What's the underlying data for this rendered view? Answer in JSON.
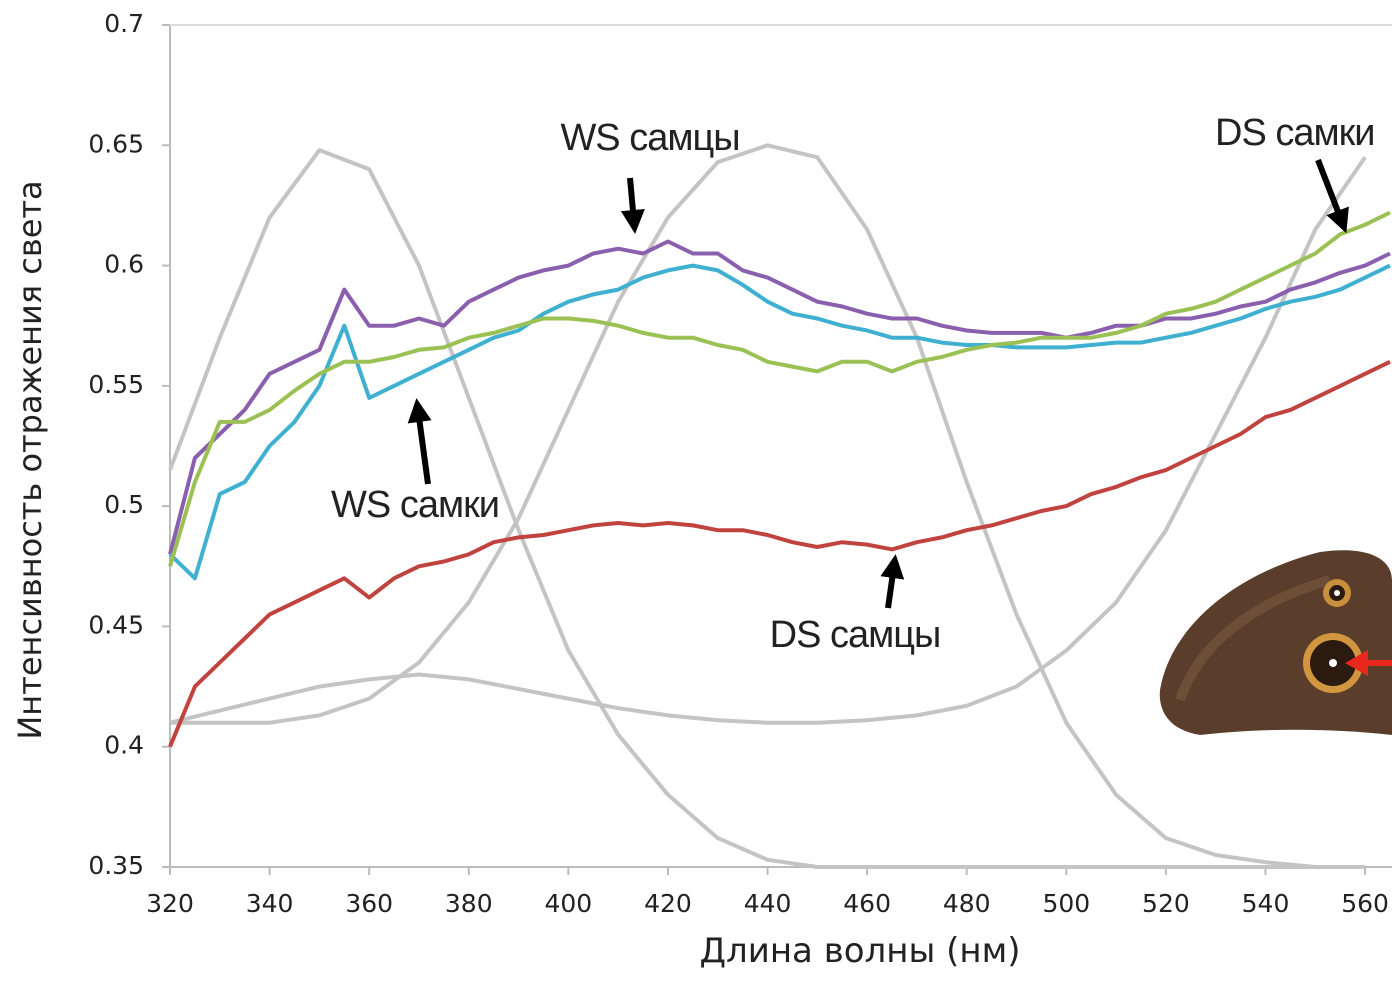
{
  "chart_data": {
    "type": "line",
    "x_label": "Длина волны (нм)",
    "y_label": "Интенсивность отражения света",
    "xlim": [
      320,
      565
    ],
    "ylim": [
      0.35,
      0.7
    ],
    "xticks": [
      320,
      340,
      360,
      380,
      400,
      420,
      440,
      460,
      480,
      500,
      520,
      540,
      560
    ],
    "yticks": [
      0.35,
      0.4,
      0.45,
      0.5,
      0.55,
      0.6,
      0.65,
      0.7
    ],
    "x": [
      320,
      325,
      330,
      335,
      340,
      345,
      350,
      355,
      360,
      365,
      370,
      375,
      380,
      385,
      390,
      395,
      400,
      405,
      410,
      415,
      420,
      425,
      430,
      435,
      440,
      445,
      450,
      455,
      460,
      465,
      470,
      475,
      480,
      485,
      490,
      495,
      500,
      505,
      510,
      515,
      520,
      525,
      530,
      535,
      540,
      545,
      550,
      555,
      560,
      565
    ],
    "series": [
      {
        "name": "WS самцы",
        "color": "#8a5fae",
        "values": [
          0.48,
          0.52,
          0.53,
          0.54,
          0.555,
          0.56,
          0.565,
          0.59,
          0.575,
          0.575,
          0.578,
          0.575,
          0.585,
          0.59,
          0.595,
          0.598,
          0.6,
          0.605,
          0.607,
          0.605,
          0.61,
          0.605,
          0.605,
          0.598,
          0.595,
          0.59,
          0.585,
          0.583,
          0.58,
          0.578,
          0.578,
          0.575,
          0.573,
          0.572,
          0.572,
          0.572,
          0.57,
          0.572,
          0.575,
          0.575,
          0.578,
          0.578,
          0.58,
          0.583,
          0.585,
          0.59,
          0.593,
          0.597,
          0.6,
          0.605
        ]
      },
      {
        "name": "WS самки",
        "color": "#3fb0cf",
        "values": [
          0.48,
          0.47,
          0.505,
          0.51,
          0.525,
          0.535,
          0.55,
          0.575,
          0.545,
          0.55,
          0.555,
          0.56,
          0.565,
          0.57,
          0.573,
          0.58,
          0.585,
          0.588,
          0.59,
          0.595,
          0.598,
          0.6,
          0.598,
          0.592,
          0.585,
          0.58,
          0.578,
          0.575,
          0.573,
          0.57,
          0.57,
          0.568,
          0.567,
          0.567,
          0.566,
          0.566,
          0.566,
          0.567,
          0.568,
          0.568,
          0.57,
          0.572,
          0.575,
          0.578,
          0.582,
          0.585,
          0.587,
          0.59,
          0.595,
          0.6
        ]
      },
      {
        "name": "DS самки",
        "color": "#9bc155",
        "values": [
          0.475,
          0.51,
          0.535,
          0.535,
          0.54,
          0.548,
          0.555,
          0.56,
          0.56,
          0.562,
          0.565,
          0.566,
          0.57,
          0.572,
          0.575,
          0.578,
          0.578,
          0.577,
          0.575,
          0.572,
          0.57,
          0.57,
          0.567,
          0.565,
          0.56,
          0.558,
          0.556,
          0.56,
          0.56,
          0.556,
          0.56,
          0.562,
          0.565,
          0.567,
          0.568,
          0.57,
          0.57,
          0.57,
          0.572,
          0.575,
          0.58,
          0.582,
          0.585,
          0.59,
          0.595,
          0.6,
          0.605,
          0.613,
          0.617,
          0.622
        ]
      },
      {
        "name": "DS самцы",
        "color": "#c0433f",
        "values": [
          0.4,
          0.425,
          0.435,
          0.445,
          0.455,
          0.46,
          0.465,
          0.47,
          0.462,
          0.47,
          0.475,
          0.477,
          0.48,
          0.485,
          0.487,
          0.488,
          0.49,
          0.492,
          0.493,
          0.492,
          0.493,
          0.492,
          0.49,
          0.49,
          0.488,
          0.485,
          0.483,
          0.485,
          0.484,
          0.482,
          0.485,
          0.487,
          0.49,
          0.492,
          0.495,
          0.498,
          0.5,
          0.505,
          0.508,
          0.512,
          0.515,
          0.52,
          0.525,
          0.53,
          0.537,
          0.54,
          0.545,
          0.55,
          0.555,
          0.56
        ]
      }
    ],
    "sensitivity": {
      "color": "#c4c4c4",
      "x": [
        320,
        330,
        340,
        350,
        360,
        370,
        380,
        390,
        400,
        410,
        420,
        430,
        440,
        450,
        460,
        470,
        480,
        490,
        500,
        510,
        520,
        530,
        540,
        550,
        560
      ],
      "curves": [
        [
          0.515,
          0.57,
          0.62,
          0.648,
          0.64,
          0.6,
          0.545,
          0.49,
          0.44,
          0.405,
          0.38,
          0.362,
          0.353,
          0.35,
          0.35,
          0.35,
          0.35,
          0.35,
          0.35,
          0.35,
          0.35,
          0.35,
          0.35,
          0.35,
          0.35
        ],
        [
          0.41,
          0.41,
          0.41,
          0.413,
          0.42,
          0.435,
          0.46,
          0.495,
          0.54,
          0.585,
          0.62,
          0.643,
          0.65,
          0.645,
          0.615,
          0.57,
          0.51,
          0.455,
          0.41,
          0.38,
          0.362,
          0.355,
          0.352,
          0.35,
          0.35
        ],
        [
          0.41,
          0.415,
          0.42,
          0.425,
          0.428,
          0.43,
          0.428,
          0.424,
          0.42,
          0.416,
          0.413,
          0.411,
          0.41,
          0.41,
          0.411,
          0.413,
          0.417,
          0.425,
          0.44,
          0.46,
          0.49,
          0.53,
          0.57,
          0.615,
          0.645
        ]
      ]
    }
  }
}
